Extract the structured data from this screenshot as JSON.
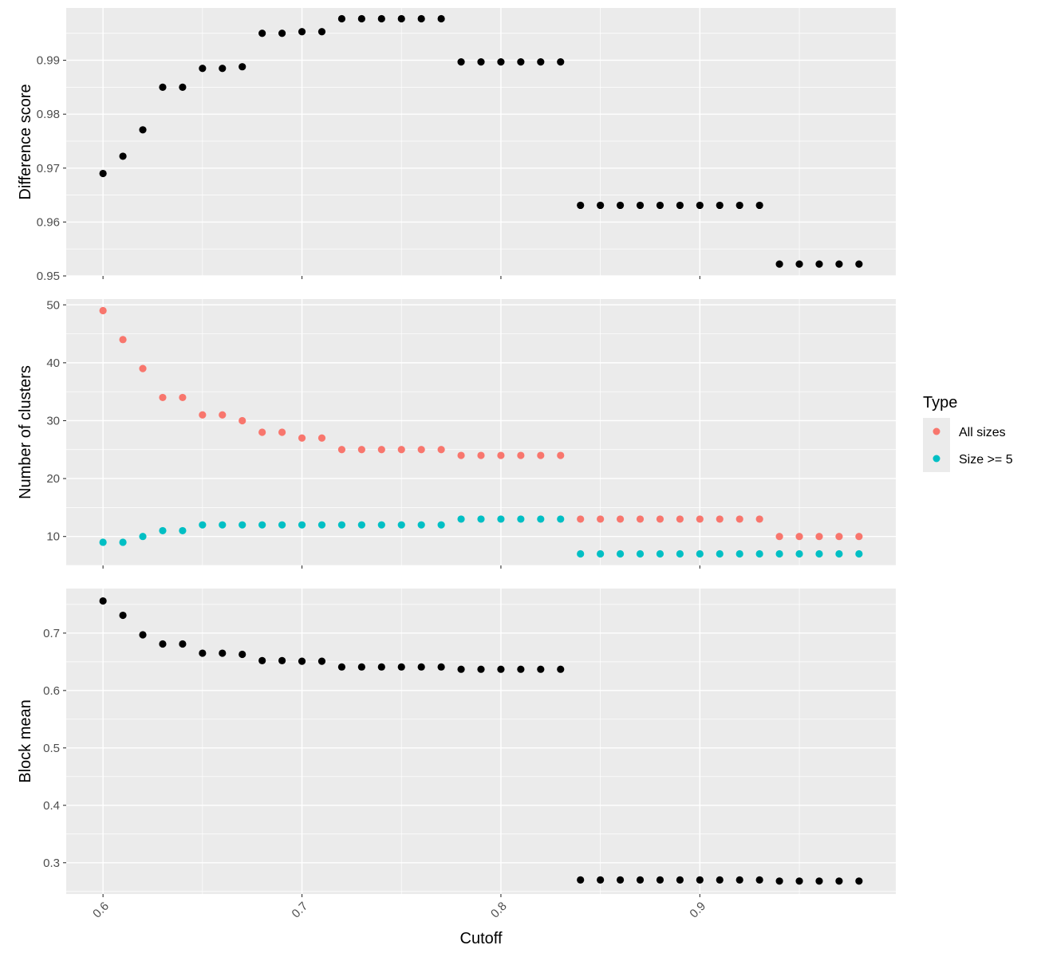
{
  "x_axis": {
    "title": "Cutoff",
    "ticks": [
      0.6,
      0.7,
      0.8,
      0.9
    ],
    "tick_labels": [
      "0.6",
      "0.7",
      "0.8",
      "0.9"
    ],
    "range": [
      0.5815,
      0.9985
    ]
  },
  "colors": {
    "panel_bg": "#EBEBEB",
    "grid_major": "#FFFFFF",
    "point_black": "#000000",
    "all_sizes": "#F8766D",
    "size_ge_5": "#00BFC4"
  },
  "legend": {
    "title": "Type",
    "items": [
      {
        "label": "All sizes",
        "color": "#F8766D"
      },
      {
        "label": "Size >= 5",
        "color": "#00BFC4"
      }
    ],
    "position": "right"
  },
  "chart_data": [
    {
      "type": "scatter",
      "panel": "top",
      "ylabel": "Difference score",
      "ylim": [
        0.95,
        0.9997
      ],
      "yticks": [
        0.95,
        0.96,
        0.97,
        0.98,
        0.99
      ],
      "ytick_labels": [
        "0.95",
        "0.96",
        "0.97",
        "0.98",
        "0.99"
      ],
      "series": [
        {
          "color": "#000000",
          "x": [
            0.6,
            0.61,
            0.62,
            0.63,
            0.64,
            0.65,
            0.66,
            0.67,
            0.68,
            0.69,
            0.7,
            0.71,
            0.72,
            0.73,
            0.74,
            0.75,
            0.76,
            0.77,
            0.78,
            0.79,
            0.8,
            0.81,
            0.82,
            0.83,
            0.84,
            0.85,
            0.86,
            0.87,
            0.88,
            0.89,
            0.9,
            0.91,
            0.92,
            0.93,
            0.94,
            0.95,
            0.96,
            0.97,
            0.98
          ],
          "y": [
            0.969,
            0.9722,
            0.9771,
            0.985,
            0.985,
            0.9885,
            0.9885,
            0.9888,
            0.995,
            0.995,
            0.9953,
            0.9953,
            0.9977,
            0.9977,
            0.9977,
            0.9977,
            0.9977,
            0.9977,
            0.9897,
            0.9897,
            0.9897,
            0.9897,
            0.9897,
            0.9897,
            0.9631,
            0.9631,
            0.9631,
            0.9631,
            0.9631,
            0.9631,
            0.9631,
            0.9631,
            0.9631,
            0.9631,
            0.9522,
            0.9522,
            0.9522,
            0.9522,
            0.9522
          ]
        }
      ]
    },
    {
      "type": "scatter",
      "panel": "middle",
      "ylabel": "Number of clusters",
      "ylim": [
        5,
        51
      ],
      "yticks": [
        10,
        20,
        30,
        40,
        50
      ],
      "ytick_labels": [
        "10",
        "20",
        "30",
        "40",
        "50"
      ],
      "series": [
        {
          "name": "All sizes",
          "color": "#F8766D",
          "x": [
            0.6,
            0.61,
            0.62,
            0.63,
            0.64,
            0.65,
            0.66,
            0.67,
            0.68,
            0.69,
            0.7,
            0.71,
            0.72,
            0.73,
            0.74,
            0.75,
            0.76,
            0.77,
            0.78,
            0.79,
            0.8,
            0.81,
            0.82,
            0.83,
            0.84,
            0.85,
            0.86,
            0.87,
            0.88,
            0.89,
            0.9,
            0.91,
            0.92,
            0.93,
            0.94,
            0.95,
            0.96,
            0.97,
            0.98
          ],
          "y": [
            49,
            44,
            39,
            34,
            34,
            31,
            31,
            30,
            28,
            28,
            27,
            27,
            25,
            25,
            25,
            25,
            25,
            25,
            24,
            24,
            24,
            24,
            24,
            24,
            13,
            13,
            13,
            13,
            13,
            13,
            13,
            13,
            13,
            13,
            10,
            10,
            10,
            10,
            10
          ]
        },
        {
          "name": "Size >= 5",
          "color": "#00BFC4",
          "x": [
            0.6,
            0.61,
            0.62,
            0.63,
            0.64,
            0.65,
            0.66,
            0.67,
            0.68,
            0.69,
            0.7,
            0.71,
            0.72,
            0.73,
            0.74,
            0.75,
            0.76,
            0.77,
            0.78,
            0.79,
            0.8,
            0.81,
            0.82,
            0.83,
            0.84,
            0.85,
            0.86,
            0.87,
            0.88,
            0.89,
            0.9,
            0.91,
            0.92,
            0.93,
            0.94,
            0.95,
            0.96,
            0.97,
            0.98
          ],
          "y": [
            9,
            9,
            10,
            11,
            11,
            12,
            12,
            12,
            12,
            12,
            12,
            12,
            12,
            12,
            12,
            12,
            12,
            12,
            13,
            13,
            13,
            13,
            13,
            13,
            7,
            7,
            7,
            7,
            7,
            7,
            7,
            7,
            7,
            7,
            7,
            7,
            7,
            7,
            7
          ]
        }
      ]
    },
    {
      "type": "scatter",
      "panel": "bottom",
      "ylabel": "Block mean",
      "ylim": [
        0.2455,
        0.7776
      ],
      "yticks": [
        0.3,
        0.4,
        0.5,
        0.6,
        0.7
      ],
      "ytick_labels": [
        "0.3",
        "0.4",
        "0.5",
        "0.6",
        "0.7"
      ],
      "series": [
        {
          "color": "#000000",
          "x": [
            0.6,
            0.61,
            0.62,
            0.63,
            0.64,
            0.65,
            0.66,
            0.67,
            0.68,
            0.69,
            0.7,
            0.71,
            0.72,
            0.73,
            0.74,
            0.75,
            0.76,
            0.77,
            0.78,
            0.79,
            0.8,
            0.81,
            0.82,
            0.83,
            0.84,
            0.85,
            0.86,
            0.87,
            0.88,
            0.89,
            0.9,
            0.91,
            0.92,
            0.93,
            0.94,
            0.95,
            0.96,
            0.97,
            0.98
          ],
          "y": [
            0.756,
            0.731,
            0.697,
            0.681,
            0.681,
            0.665,
            0.665,
            0.663,
            0.652,
            0.652,
            0.651,
            0.651,
            0.641,
            0.641,
            0.641,
            0.641,
            0.641,
            0.641,
            0.637,
            0.637,
            0.637,
            0.637,
            0.637,
            0.637,
            0.27,
            0.27,
            0.27,
            0.27,
            0.27,
            0.27,
            0.27,
            0.27,
            0.27,
            0.27,
            0.268,
            0.268,
            0.268,
            0.268,
            0.268
          ]
        }
      ]
    }
  ]
}
